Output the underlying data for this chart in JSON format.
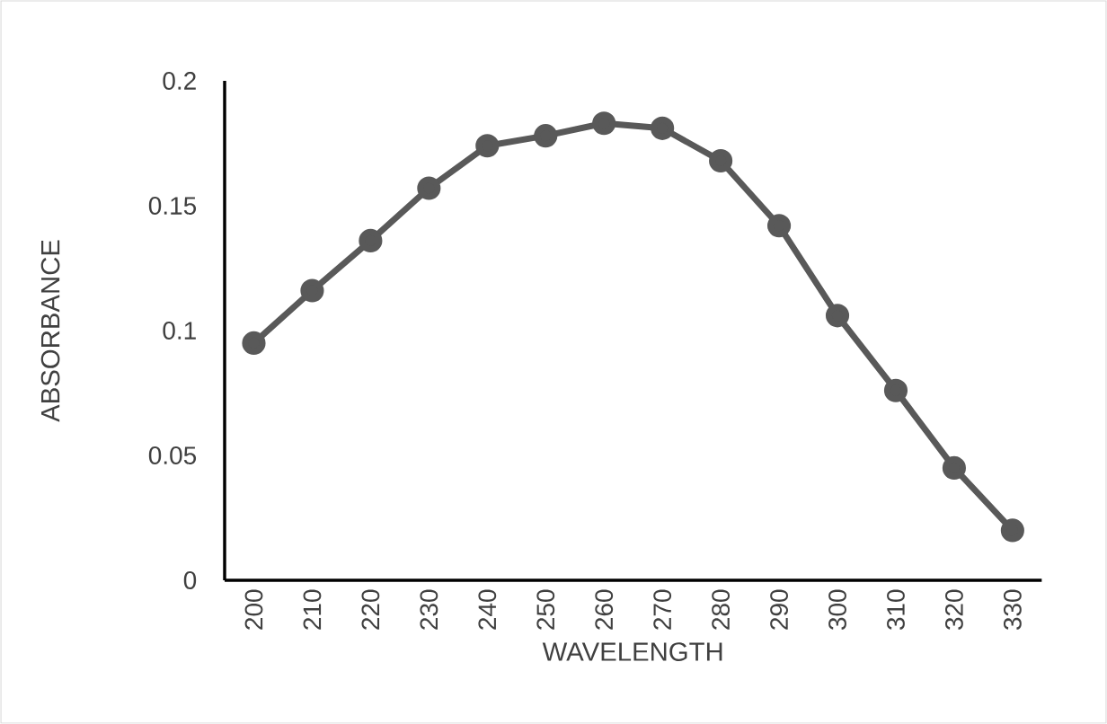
{
  "chart_data": {
    "type": "line",
    "xlabel": "WAVELENGTH",
    "ylabel": "ABSORBANCE",
    "categories": [
      "200",
      "210",
      "220",
      "230",
      "240",
      "250",
      "260",
      "270",
      "280",
      "290",
      "300",
      "310",
      "320",
      "330"
    ],
    "series": [
      {
        "color": "#595959",
        "values": [
          0.095,
          0.116,
          0.136,
          0.157,
          0.174,
          0.178,
          0.183,
          0.181,
          0.168,
          0.142,
          0.106,
          0.076,
          0.045,
          0.02
        ]
      }
    ],
    "ylim": [
      0,
      0.2
    ],
    "yticks": [
      0,
      0.05,
      0.1,
      0.15,
      0.2
    ],
    "marker": "circle",
    "line_style": "solid"
  }
}
